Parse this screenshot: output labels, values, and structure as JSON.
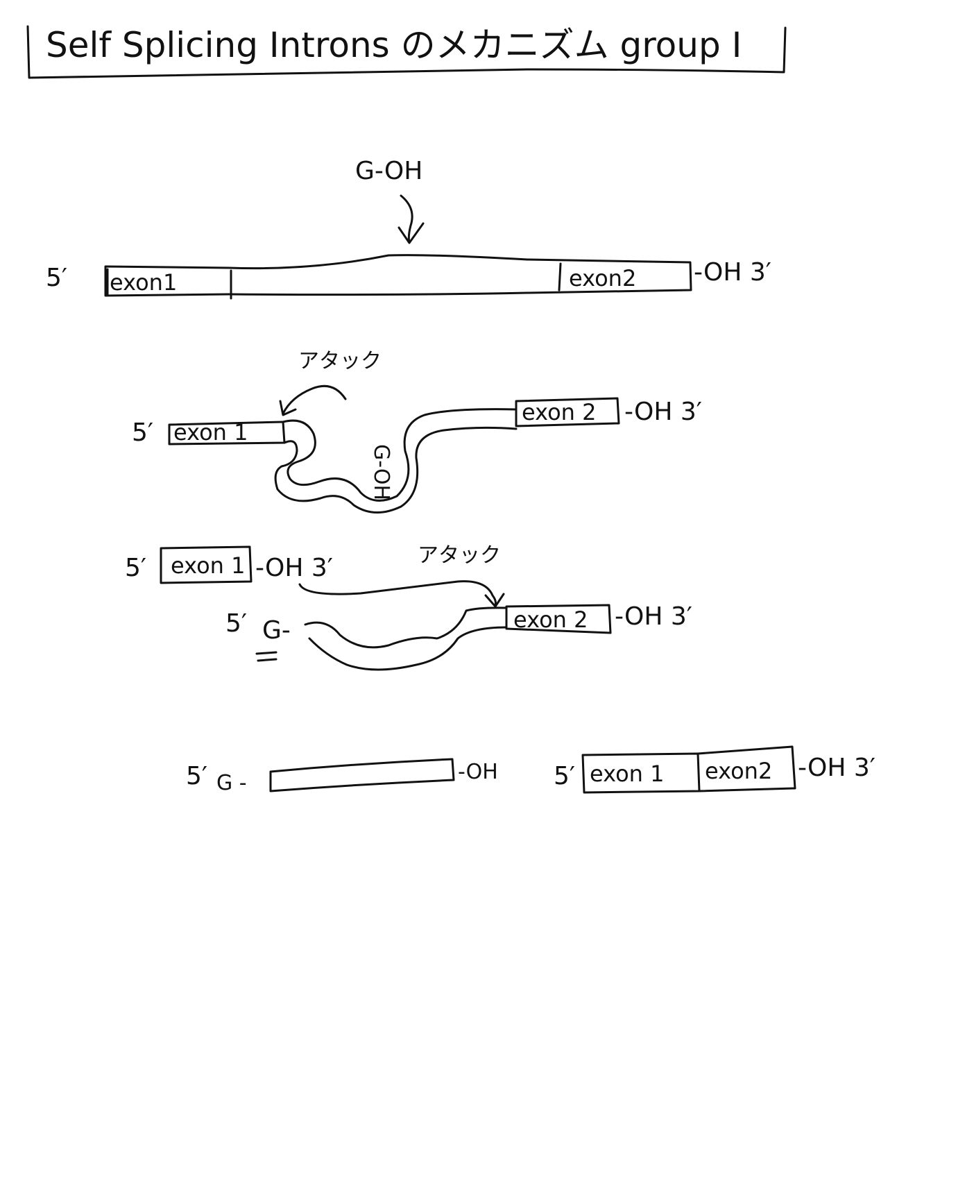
{
  "title": {
    "text": "Self Splicing Introns のメカニズム group I"
  },
  "step1": {
    "g_oh": "G-OH",
    "five_prime": "5′",
    "exon1": "exon1",
    "exon2": "exon2",
    "three_end": "-OH 3′"
  },
  "step2": {
    "attack": "アタック",
    "five_prime": "5′",
    "exon1": "exon 1",
    "g_oh": "G-OH",
    "exon2": "exon 2",
    "three_end": "-OH 3′"
  },
  "step3": {
    "five_prime_top": "5′",
    "exon1": "exon 1",
    "exon1_end": "-OH 3′",
    "attack": "アタック",
    "five_prime_bottom": "5′",
    "g_start": "G-",
    "exon2": "exon 2",
    "three_end": "-OH 3′"
  },
  "step4": {
    "intron_five": "5′",
    "intron_g": "G -",
    "intron_end": "-OH",
    "mrna_five": "5′",
    "exon1": "exon 1",
    "exon2": "exon2",
    "mrna_end": "-OH 3′"
  }
}
